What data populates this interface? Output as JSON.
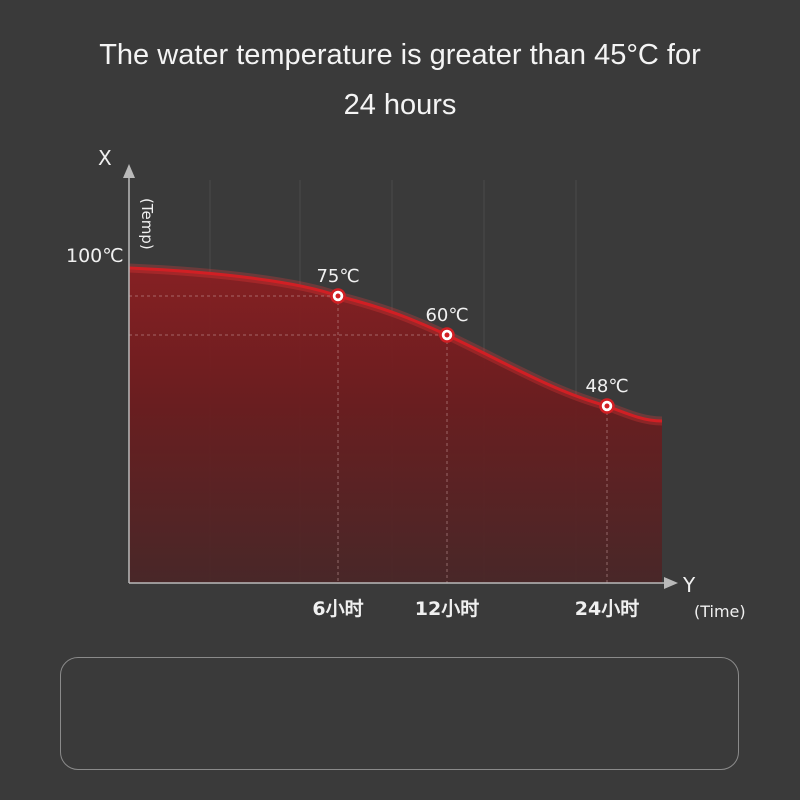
{
  "headline": {
    "line1": "The water temperature is greater than 45°C for",
    "line2": "24 hours"
  },
  "chart_data": {
    "type": "area",
    "x_axis_letter": "Y",
    "x_axis_label": "(Time)",
    "y_axis_letter": "X",
    "y_axis_label": "(Temp)",
    "y_tick_label": "100℃",
    "categories": [
      "6小时",
      "12小时",
      "24小时"
    ],
    "points": [
      {
        "x": 6,
        "y": 75,
        "label": "75℃"
      },
      {
        "x": 12,
        "y": 60,
        "label": "60℃"
      },
      {
        "x": 24,
        "y": 48,
        "label": "48℃"
      }
    ],
    "curve_start": {
      "x": 0,
      "y": 100
    },
    "colors": {
      "curve": "#d11f24",
      "fill": "#6e1c1e",
      "marker_fill": "#ffffff"
    }
  }
}
